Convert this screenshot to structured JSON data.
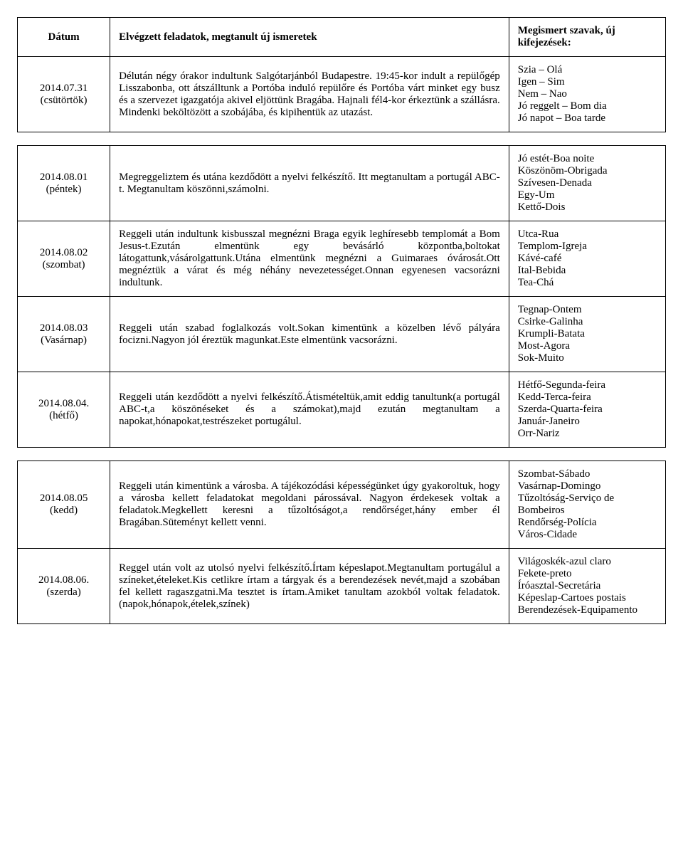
{
  "headers": {
    "date": "Dátum",
    "task": "Elvégzett feladatok, megtanult új ismeretek",
    "words": "Megismert szavak, új kifejezések:"
  },
  "group1": {
    "rows": [
      {
        "date": "2014.07.31\n(csütörtök)",
        "task": "Délután négy órakor indultunk Salgótarjánból  Budapestre. 19:45-kor indult a repülőgép Lisszabonba, ott átszálltunk a Portóba induló repülőre és Portóba várt minket egy busz és a szervezet igazgatója akivel eljöttünk Bragába. Hajnali fél4-kor érkeztünk a szállásra. Mindenki beköltözött a szobájába, és kipihentük az utazást.",
        "words": "Szia – Olá\nIgen – Sim\nNem – Nao\nJó reggelt – Bom dia\nJó napot – Boa tarde"
      }
    ]
  },
  "group2": {
    "rows": [
      {
        "date": "2014.08.01\n(péntek)",
        "task": "Megreggeliztem és utána kezdődött a nyelvi felkészítő. Itt megtanultam a portugál ABC-t. Megtanultam köszönni,számolni.",
        "words": "Jó estét-Boa noite\nKöszönöm-Obrigada\nSzívesen-Denada\nEgy-Um\nKettő-Dois"
      },
      {
        "date": "2014.08.02\n(szombat)",
        "task": "Reggeli után indultunk kisbusszal megnézni Braga egyik leghíresebb templomát a Bom Jesus-t.Ezután elmentünk egy bevásárló központba,boltokat látogattunk,vásárolgattunk.Utána elmentünk megnézni a Guimaraes óvárosát.Ott megnéztük a várat és még néhány nevezetességet.Onnan egyenesen vacsorázni indultunk.",
        "words": "Utca-Rua\nTemplom-Igreja\nKávé-café\nItal-Bebida\nTea-Chá"
      },
      {
        "date": "2014.08.03\n(Vasárnap)",
        "task": "Reggeli után  szabad foglalkozás volt.Sokan kimentünk a közelben lévő pályára focizni.Nagyon jól éreztük magunkat.Este elmentünk vacsorázni.",
        "words": "Tegnap-Ontem\nCsirke-Galinha\nKrumpli-Batata\nMost-Agora\nSok-Muito"
      },
      {
        "date": "2014.08.04.\n(hétfő)",
        "task": "Reggeli után kezdődött a nyelvi felkészítő.Átismételtük,amit eddig tanultunk(a portugál ABC-t,a köszönéseket és a számokat),majd ezután megtanultam a napokat,hónapokat,testrészeket portugálul.",
        "words": "Hétfő-Segunda-feira\nKedd-Terca-feira\nSzerda-Quarta-feira\nJanuár-Janeiro\nOrr-Nariz"
      }
    ]
  },
  "group3": {
    "rows": [
      {
        "date": "2014.08.05\n(kedd)",
        "task": "Reggeli után kimentünk a városba. A tájékozódási képességünket úgy gyakoroltuk, hogy a városba kellett feladatokat megoldani  párossával. Nagyon érdekesek voltak a feladatok.Megkellett keresni a tűzoltóságot,a rendőrséget,hány ember él Bragában.Süteményt kellett venni.",
        "words": "Szombat-Sábado\nVasárnap-Domingo\nTűzoltóság-Serviço de Bombeiros\nRendőrség-Polícia\nVáros-Cidade"
      },
      {
        "date": "2014.08.06.\n(szerda)",
        "task": "Reggel után volt az utolsó nyelvi felkészítő.Írtam képeslapot.Megtanultam portugálul a színeket,ételeket.Kis cetlikre írtam a tárgyak és a berendezések nevét,majd a szobában fel kellett ragaszgatni.Ma tesztet is írtam.Amiket tanultam azokból voltak feladatok.(napok,hónapok,ételek,színek)",
        "words": "Világoskék-azul claro\nFekete-preto\nÍróasztal-Secretária\nKépeslap-Cartoes postais\nBerendezések-Equipamento"
      }
    ]
  }
}
